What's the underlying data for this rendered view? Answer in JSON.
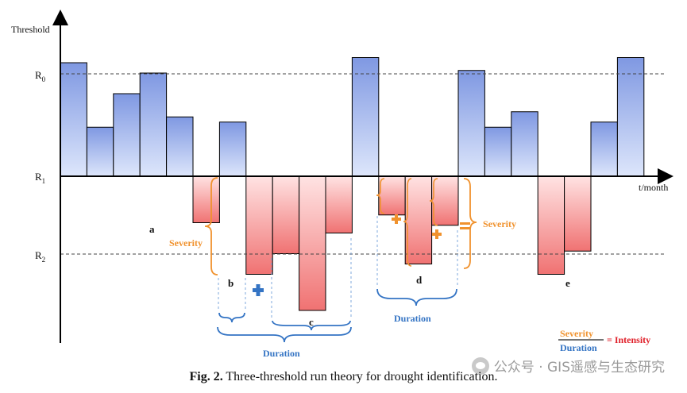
{
  "figure": {
    "axis_y_label": "Threshold",
    "axis_x_label": "t/month",
    "thresholds": [
      {
        "name": "R0",
        "base": "R",
        "sub": "0",
        "value": 2.0
      },
      {
        "name": "R1",
        "base": "R",
        "sub": "1",
        "value": 0.0
      },
      {
        "name": "R2",
        "base": "R",
        "sub": "2",
        "value": -1.5
      }
    ],
    "bars": [
      2.2,
      0.95,
      1.6,
      2.0,
      1.15,
      -0.9,
      1.05,
      -1.9,
      -1.5,
      -2.6,
      -1.1,
      2.3,
      -0.75,
      -1.7,
      -0.95,
      2.05,
      0.95,
      1.25,
      -1.9,
      -1.45,
      1.05,
      2.3
    ],
    "colors": {
      "positive": "#8fa6e6",
      "negative": "#f28b8b",
      "orange": "#f0922e",
      "blue": "#3474c4",
      "red": "#e0202a"
    },
    "event_labels": [
      {
        "id": "a",
        "text": "a"
      },
      {
        "id": "b",
        "text": "b"
      },
      {
        "id": "c",
        "text": "c"
      },
      {
        "id": "d",
        "text": "d"
      },
      {
        "id": "e",
        "text": "e"
      }
    ],
    "severity_left": "Severity",
    "severity_right": "Severity",
    "duration_left": "Duration",
    "duration_right": "Duration",
    "formula": {
      "numerator": "Severity",
      "denominator": "Duration",
      "result": "= Intensity"
    }
  },
  "caption": {
    "prefix": "Fig. 2.",
    "text": "Three-threshold run theory for drought identification."
  },
  "watermark": {
    "text": "公众号 · GIS遥感与生态研究"
  }
}
